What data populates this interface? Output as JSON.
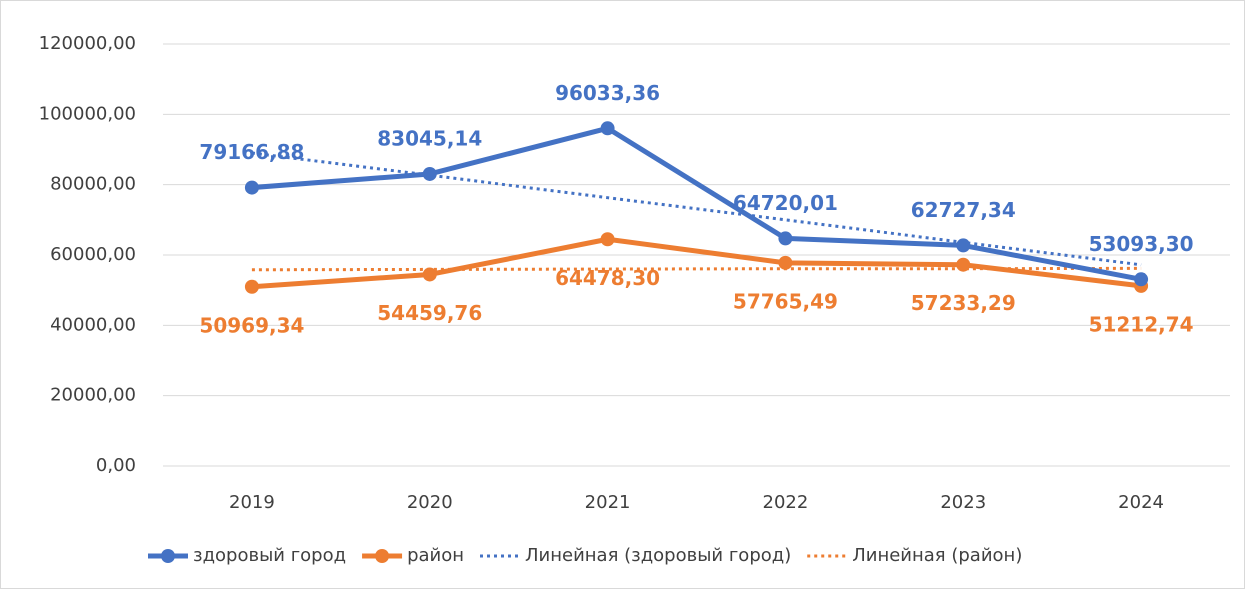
{
  "chart_data": {
    "type": "line",
    "categories": [
      "2019",
      "2020",
      "2021",
      "2022",
      "2023",
      "2024"
    ],
    "series": [
      {
        "name": "здоровый город",
        "color": "#4472c4",
        "marker": true,
        "values": [
          79166.88,
          83045.14,
          96033.36,
          64720.01,
          62727.34,
          53093.3
        ],
        "value_labels": [
          "79166,88",
          "83045,14",
          "96033,36",
          "64720,01",
          "62727,34",
          "53093,30"
        ]
      },
      {
        "name": "район",
        "color": "#ed7d31",
        "marker": true,
        "values": [
          50969.34,
          54459.76,
          64478.3,
          57765.49,
          57233.29,
          51212.74
        ],
        "value_labels": [
          "50969,34",
          "54459,76",
          "64478,30",
          "57765,49",
          "57233,29",
          "51212,74"
        ]
      },
      {
        "name": "Линейная (здоровый город)",
        "color": "#4472c4",
        "dotted": true,
        "values": [
          89000,
          82700,
          76300,
          70000,
          63600,
          57200
        ]
      },
      {
        "name": "Линейная (район)",
        "color": "#ed7d31",
        "dotted": true,
        "values": [
          55800,
          55900,
          56000,
          56100,
          56100,
          56200
        ]
      }
    ],
    "ylim": [
      0,
      120000
    ],
    "yticks": [
      {
        "value": 0,
        "label": "0,00"
      },
      {
        "value": 20000,
        "label": "20000,00"
      },
      {
        "value": 40000,
        "label": "40000,00"
      },
      {
        "value": 60000,
        "label": "60000,00"
      },
      {
        "value": 80000,
        "label": "80000,00"
      },
      {
        "value": 100000,
        "label": "100000,00"
      },
      {
        "value": 120000,
        "label": "120000,00"
      }
    ],
    "grid": true,
    "legend": "bottom"
  }
}
